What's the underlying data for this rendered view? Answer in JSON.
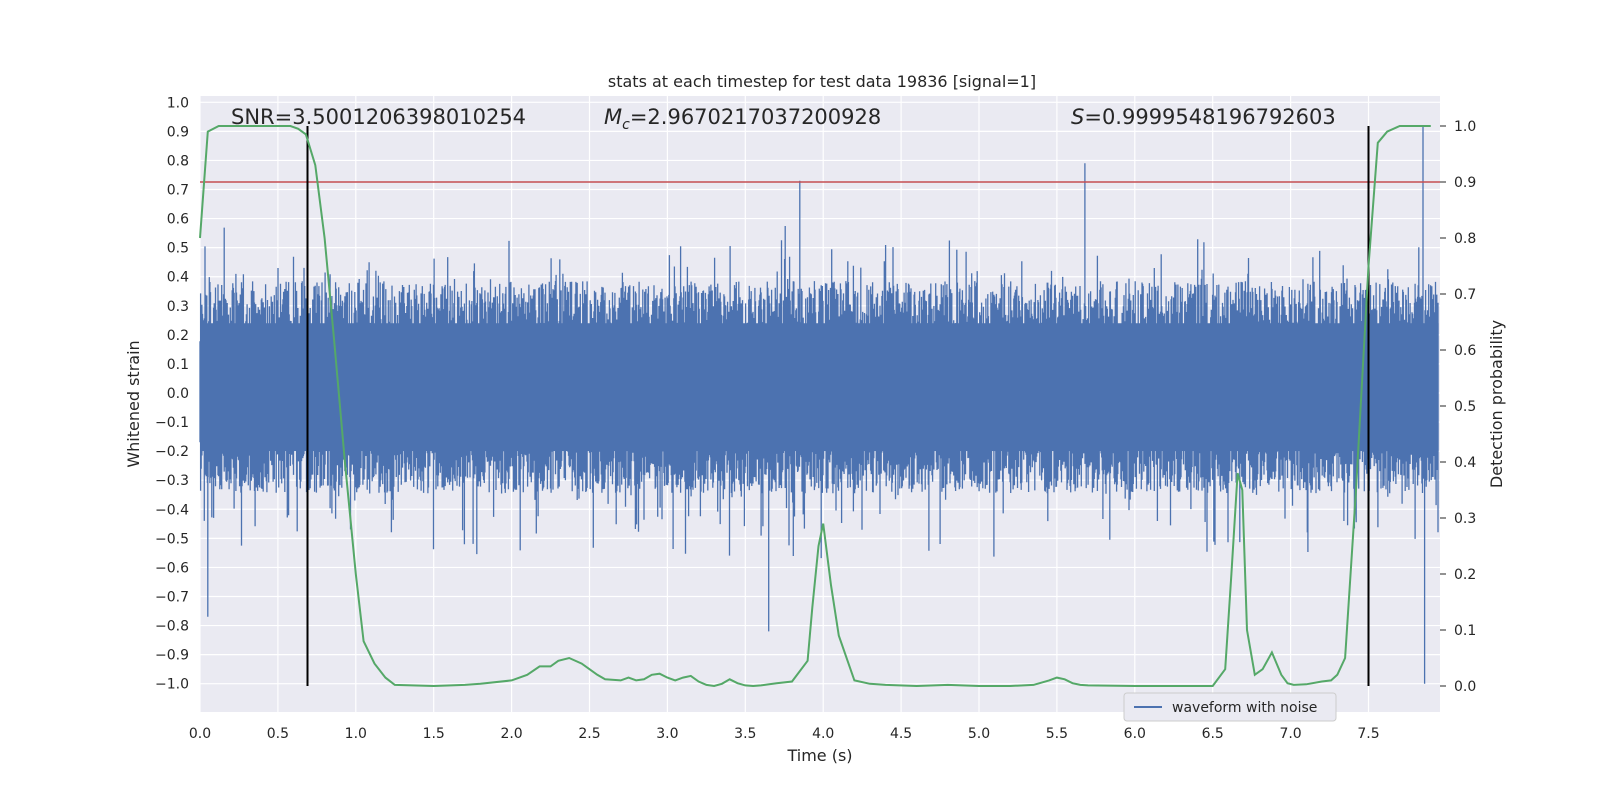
{
  "chart_data": {
    "type": "line",
    "title": "stats at each timestep for test data 19836 [signal=1]",
    "xlabel": "Time (s)",
    "ylabel": "Whitened strain",
    "ylabel_right": "Detection probability",
    "xlim": [
      0.0,
      8.0
    ],
    "ylim": [
      -1.08,
      1.02
    ],
    "ylim_right": [
      -0.05,
      1.05
    ],
    "xticks": [
      0.0,
      0.5,
      1.0,
      1.5,
      2.0,
      2.5,
      3.0,
      3.5,
      4.0,
      4.5,
      5.0,
      5.5,
      6.0,
      6.5,
      7.0,
      7.5
    ],
    "yticks": [
      1.0,
      0.9,
      0.8,
      0.7,
      0.6,
      0.5,
      0.4,
      0.3,
      0.2,
      0.1,
      0.0,
      -0.1,
      -0.2,
      -0.3,
      -0.4,
      -0.5,
      -0.6,
      -0.7,
      -0.8,
      -0.9,
      -1.0
    ],
    "yticks_right": [
      1.0,
      0.9,
      0.8,
      0.7,
      0.6,
      0.5,
      0.4,
      0.3,
      0.2,
      0.1,
      0.0
    ],
    "grid": true,
    "legend_position": "lower-right",
    "annotations": {
      "snr": "SNR=3.5001206398010254",
      "mc": "=2.9670217037200928",
      "s": "=0.9999548196792603"
    },
    "threshold_right": 0.9,
    "vlines_x": [
      0.69,
      7.5
    ],
    "series": [
      {
        "name": "waveform with noise",
        "color": "#4c72b0",
        "axis": "left",
        "typical_band": [
          -0.3,
          0.35
        ],
        "max_abs": 1.0,
        "notable_peaks": [
          [
            0.05,
            -0.77
          ],
          [
            3.65,
            -0.82
          ],
          [
            3.85,
            0.73
          ],
          [
            5.68,
            0.79
          ],
          [
            7.85,
            0.92
          ],
          [
            7.86,
            -1.0
          ]
        ]
      },
      {
        "color": "#55a868",
        "axis": "right",
        "x": [
          0.0,
          0.05,
          0.12,
          0.2,
          0.3,
          0.4,
          0.5,
          0.58,
          0.63,
          0.68,
          0.74,
          0.8,
          0.86,
          0.93,
          1.0,
          1.05,
          1.12,
          1.19,
          1.25,
          1.5,
          1.7,
          1.8,
          2.0,
          2.1,
          2.18,
          2.25,
          2.3,
          2.37,
          2.45,
          2.5,
          2.55,
          2.6,
          2.7,
          2.75,
          2.8,
          2.85,
          2.9,
          2.95,
          3.0,
          3.05,
          3.1,
          3.15,
          3.2,
          3.25,
          3.3,
          3.35,
          3.4,
          3.45,
          3.5,
          3.55,
          3.6,
          3.7,
          3.8,
          3.9,
          3.93,
          3.97,
          4.0,
          4.05,
          4.1,
          4.2,
          4.3,
          4.4,
          4.6,
          4.8,
          5.0,
          5.2,
          5.35,
          5.45,
          5.5,
          5.55,
          5.6,
          5.65,
          5.7,
          6.0,
          6.5,
          6.58,
          6.62,
          6.66,
          6.69,
          6.72,
          6.77,
          6.82,
          6.88,
          6.94,
          6.98,
          7.02,
          7.1,
          7.2,
          7.26,
          7.3,
          7.35,
          7.42,
          7.5,
          7.56,
          7.62,
          7.7,
          7.8,
          7.9
        ],
        "values": [
          0.8,
          0.99,
          1.0,
          1.0,
          1.0,
          1.0,
          1.0,
          1.0,
          0.995,
          0.985,
          0.93,
          0.8,
          0.62,
          0.4,
          0.2,
          0.08,
          0.04,
          0.015,
          0.002,
          0.0,
          0.002,
          0.004,
          0.01,
          0.02,
          0.035,
          0.035,
          0.045,
          0.05,
          0.04,
          0.03,
          0.02,
          0.012,
          0.01,
          0.015,
          0.01,
          0.012,
          0.02,
          0.022,
          0.015,
          0.01,
          0.015,
          0.018,
          0.008,
          0.002,
          0.0,
          0.004,
          0.012,
          0.005,
          0.001,
          0.0,
          0.001,
          0.005,
          0.008,
          0.045,
          0.14,
          0.25,
          0.29,
          0.18,
          0.09,
          0.01,
          0.004,
          0.002,
          0.0,
          0.002,
          0.0,
          0.0,
          0.002,
          0.01,
          0.015,
          0.012,
          0.005,
          0.002,
          0.001,
          0.0,
          0.0,
          0.03,
          0.2,
          0.38,
          0.35,
          0.1,
          0.02,
          0.03,
          0.06,
          0.02,
          0.005,
          0.002,
          0.003,
          0.008,
          0.01,
          0.02,
          0.05,
          0.35,
          0.75,
          0.97,
          0.99,
          1.0,
          1.0,
          1.0
        ]
      }
    ]
  }
}
